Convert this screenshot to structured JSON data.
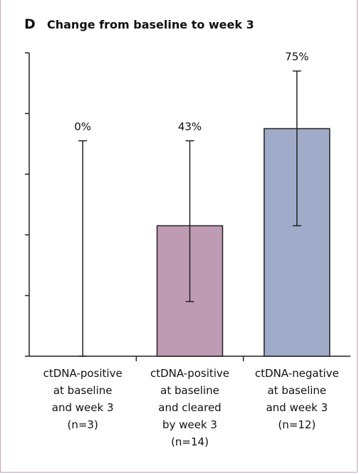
{
  "panel": {
    "letter": "D",
    "title": "Change from baseline to week 3"
  },
  "chart_data": {
    "type": "bar",
    "title": "Change from baseline to week 3",
    "xlabel": "",
    "ylabel": "",
    "ylim": [
      0,
      100
    ],
    "yticks": [
      0,
      20,
      40,
      60,
      80,
      100
    ],
    "categories": [
      [
        "ctDNA-positive",
        "at baseline",
        "and week 3",
        "(n=3)"
      ],
      [
        "ctDNA-positive",
        "at baseline",
        "and cleared",
        "by week 3",
        "(n=14)"
      ],
      [
        "ctDNA-negative",
        "at baseline",
        "and week 3",
        "(n=12)"
      ]
    ],
    "values": [
      0,
      43,
      75
    ],
    "value_labels": [
      "0%",
      "43%",
      "75%"
    ],
    "ci_low": [
      0,
      18,
      43
    ],
    "ci_high": [
      71,
      71,
      94
    ],
    "colors": [
      "#ffffff",
      "#bf9bb3",
      "#9fabc9"
    ],
    "grid": false
  }
}
